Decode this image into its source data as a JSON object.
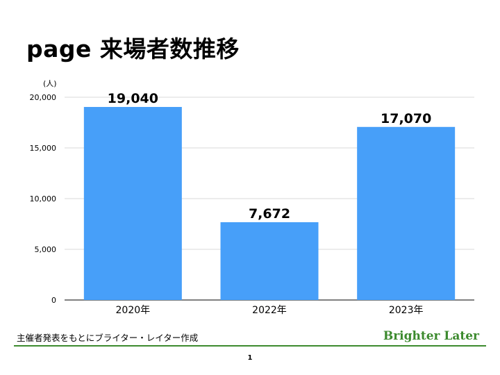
{
  "slide": {
    "title": "page 来場者数推移",
    "caption": "主催者発表をもとにブライター・レイター作成",
    "brand": "Brighter Later",
    "page_number": "1"
  },
  "colors": {
    "bar": "#479ff9",
    "grid": "#d9d9d9",
    "brand": "#3c8a2e",
    "footer_line": "#3c8a2e"
  },
  "chart_data": {
    "type": "bar",
    "categories": [
      "2020年",
      "2022年",
      "2023年"
    ],
    "values": [
      19040,
      7672,
      17070
    ],
    "value_labels": [
      "19,040",
      "7,672",
      "17,070"
    ],
    "yunit": "(人)",
    "ylim": [
      0,
      20000
    ],
    "yticks": [
      0,
      5000,
      10000,
      15000,
      20000
    ],
    "ytick_labels": [
      "0",
      "5,000",
      "10,000",
      "15,000",
      "20,000"
    ],
    "grid": true,
    "legend": "none"
  }
}
